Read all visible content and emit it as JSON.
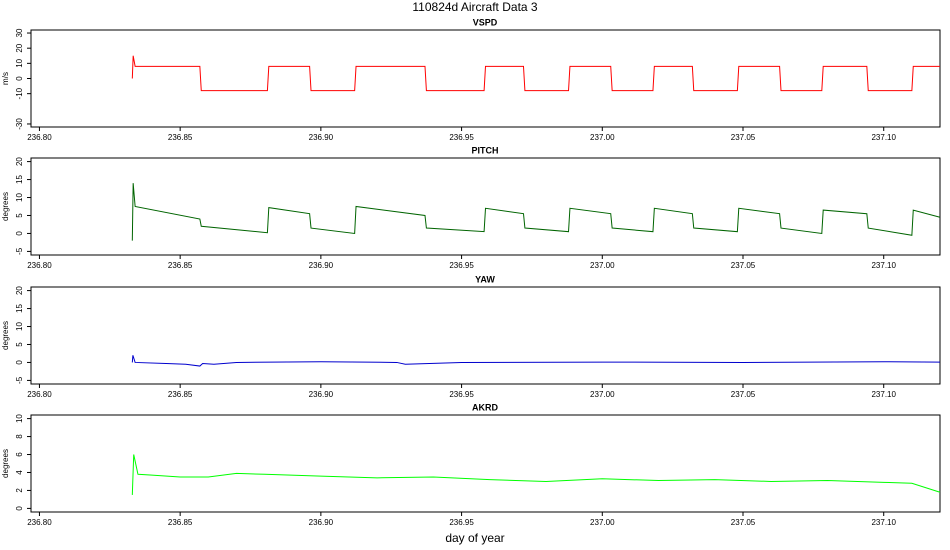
{
  "title": "110824d   Aircraft Data 3",
  "xlabel": "day of year",
  "chart_data": [
    {
      "type": "line",
      "title": "VSPD",
      "ylabel": "m/s",
      "color": "#ff0000",
      "x": [
        236.833,
        236.8333,
        236.834,
        236.857,
        236.8575,
        236.881,
        236.8815,
        236.896,
        236.8965,
        236.912,
        236.9125,
        236.937,
        236.9375,
        236.958,
        236.9585,
        236.972,
        236.9725,
        236.988,
        236.9885,
        237.003,
        237.0035,
        237.018,
        237.0185,
        237.032,
        237.0325,
        237.048,
        237.0485,
        237.063,
        237.0635,
        237.078,
        237.0785,
        237.094,
        237.0945,
        237.11,
        237.1105,
        237.12
      ],
      "values": [
        0,
        15,
        8,
        8,
        -8,
        -8,
        8,
        8,
        -8,
        -8,
        8,
        8,
        -8,
        -8,
        8,
        8,
        -8,
        -8,
        8,
        8,
        -8,
        -8,
        8,
        8,
        -8,
        -8,
        8,
        8,
        -8,
        -8,
        8,
        8,
        -8,
        -8,
        8,
        8
      ],
      "xlim": [
        236.797,
        237.12
      ],
      "ylim": [
        -32,
        32
      ],
      "xticks": [
        {
          "value": 236.8,
          "label": "236.80"
        },
        {
          "value": 236.85,
          "label": "236.85"
        },
        {
          "value": 236.9,
          "label": "236.90"
        },
        {
          "value": 236.95,
          "label": "236.95"
        },
        {
          "value": 237.0,
          "label": "237.00"
        },
        {
          "value": 237.05,
          "label": "237.05"
        },
        {
          "value": 237.1,
          "label": "237.10"
        }
      ],
      "yticks": [
        -30,
        -10,
        0,
        10,
        20,
        30
      ]
    },
    {
      "type": "line",
      "title": "PITCH",
      "ylabel": "degrees",
      "color": "#006400",
      "x": [
        236.833,
        236.8333,
        236.834,
        236.857,
        236.8575,
        236.881,
        236.8815,
        236.896,
        236.8965,
        236.912,
        236.9125,
        236.937,
        236.9375,
        236.958,
        236.9585,
        236.972,
        236.9725,
        236.988,
        236.9885,
        237.003,
        237.0035,
        237.018,
        237.0185,
        237.032,
        237.0325,
        237.048,
        237.0485,
        237.063,
        237.0635,
        237.078,
        237.0785,
        237.094,
        237.0945,
        237.11,
        237.1105,
        237.12
      ],
      "values": [
        -2,
        14,
        7.5,
        4,
        2,
        0.2,
        7.2,
        5.5,
        1.5,
        0,
        7.5,
        5,
        1.5,
        0.5,
        7,
        5.5,
        1.5,
        0.5,
        7,
        5.5,
        1.5,
        0.5,
        7,
        5.5,
        1.5,
        0.5,
        7,
        5.5,
        1.5,
        0,
        6.5,
        5.5,
        1.5,
        -0.5,
        6.5,
        4.5
      ],
      "xlim": [
        236.797,
        237.12
      ],
      "ylim": [
        -6,
        21
      ],
      "xticks": [
        {
          "value": 236.8,
          "label": "236.80"
        },
        {
          "value": 236.85,
          "label": "236.85"
        },
        {
          "value": 236.9,
          "label": "236.90"
        },
        {
          "value": 236.95,
          "label": "236.95"
        },
        {
          "value": 237.0,
          "label": "237.00"
        },
        {
          "value": 237.05,
          "label": "237.05"
        },
        {
          "value": 237.1,
          "label": "237.10"
        }
      ],
      "yticks": [
        -5,
        0,
        5,
        10,
        15,
        20
      ]
    },
    {
      "type": "line",
      "title": "YAW",
      "ylabel": "degrees",
      "color": "#0000cd",
      "x": [
        236.833,
        236.8332,
        236.834,
        236.845,
        236.852,
        236.857,
        236.858,
        236.862,
        236.87,
        236.9,
        236.927,
        236.93,
        236.95,
        237.0,
        237.05,
        237.1,
        237.12
      ],
      "values": [
        0,
        2,
        0,
        -0.3,
        -0.5,
        -1,
        -0.3,
        -0.5,
        0,
        0.2,
        0,
        -0.5,
        0,
        0.1,
        0,
        0.2,
        0.1
      ],
      "xlim": [
        236.797,
        237.12
      ],
      "ylim": [
        -6,
        21
      ],
      "xticks": [
        {
          "value": 236.8,
          "label": "236.80"
        },
        {
          "value": 236.85,
          "label": "236.85"
        },
        {
          "value": 236.9,
          "label": "236.90"
        },
        {
          "value": 236.95,
          "label": "236.95"
        },
        {
          "value": 237.0,
          "label": "237.00"
        },
        {
          "value": 237.05,
          "label": "237.05"
        },
        {
          "value": 237.1,
          "label": "237.10"
        }
      ],
      "yticks": [
        -5,
        0,
        5,
        10,
        15,
        20
      ]
    },
    {
      "type": "line",
      "title": "AKRD",
      "ylabel": "degrees",
      "color": "#00ff00",
      "x": [
        236.833,
        236.8335,
        236.835,
        236.84,
        236.85,
        236.86,
        236.87,
        236.88,
        236.9,
        236.92,
        236.94,
        236.96,
        236.98,
        237.0,
        237.02,
        237.04,
        237.06,
        237.08,
        237.1,
        237.11,
        237.12
      ],
      "values": [
        1.5,
        6,
        3.8,
        3.7,
        3.5,
        3.5,
        3.9,
        3.8,
        3.6,
        3.4,
        3.5,
        3.2,
        3.0,
        3.3,
        3.1,
        3.2,
        3.0,
        3.1,
        2.9,
        2.8,
        1.8
      ],
      "xlim": [
        236.797,
        237.12
      ],
      "ylim": [
        -0.4,
        10.4
      ],
      "xticks": [
        {
          "value": 236.8,
          "label": "236.80"
        },
        {
          "value": 236.85,
          "label": "236.85"
        },
        {
          "value": 236.9,
          "label": "236.90"
        },
        {
          "value": 236.95,
          "label": "236.95"
        },
        {
          "value": 237.0,
          "label": "237.00"
        },
        {
          "value": 237.05,
          "label": "237.05"
        },
        {
          "value": 237.1,
          "label": "237.10"
        }
      ],
      "yticks": [
        0,
        2,
        4,
        6,
        8,
        10
      ]
    }
  ]
}
